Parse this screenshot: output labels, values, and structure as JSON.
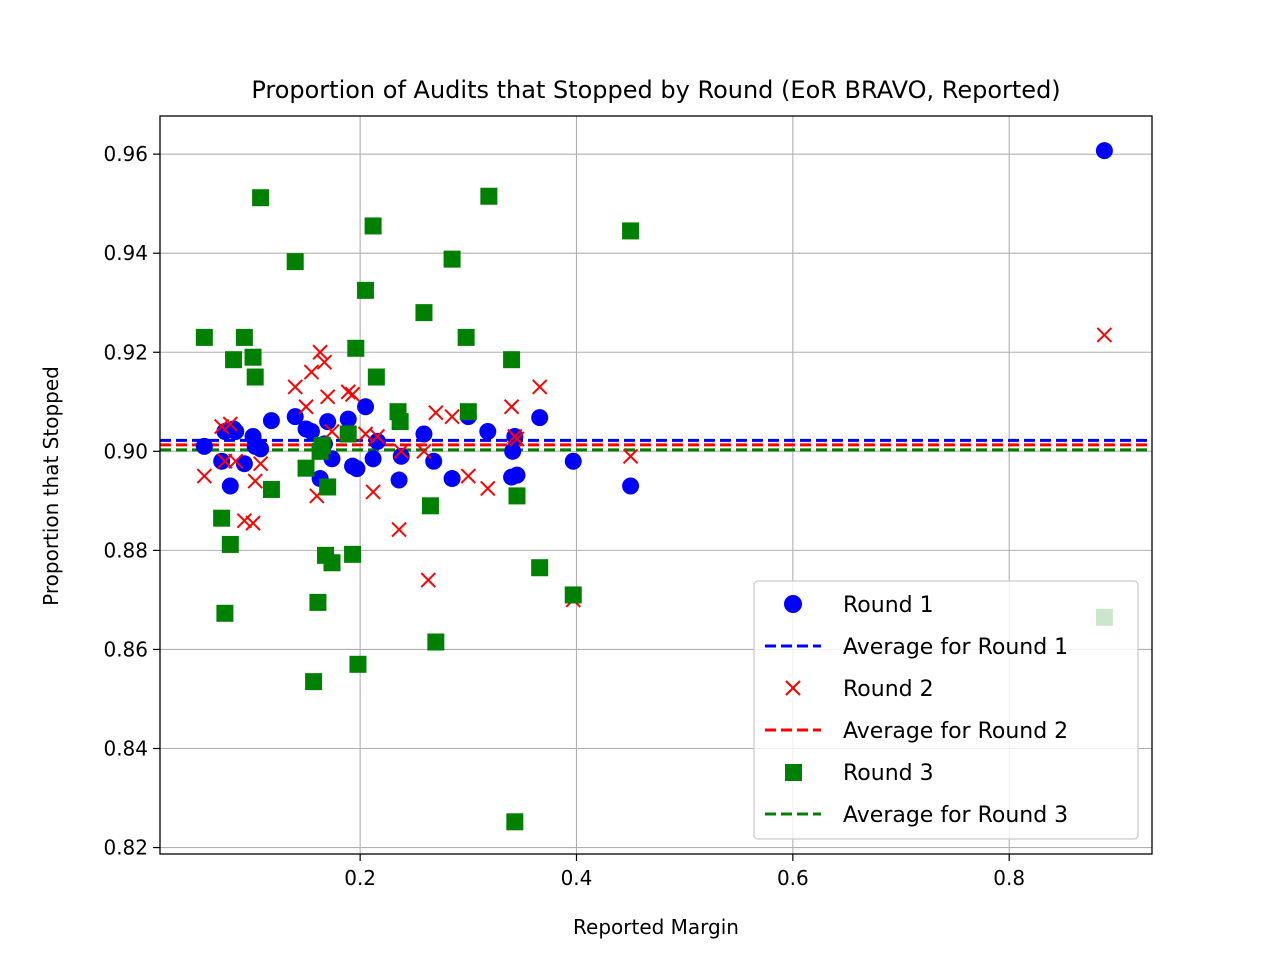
{
  "chart_data": {
    "type": "scatter",
    "title": "Proportion of Audits that Stopped by Round (EoR BRAVO, Reported)",
    "xlabel": "Reported Margin",
    "ylabel": "Proportion that Stopped",
    "xlim": [
      0.015,
      0.932
    ],
    "ylim": [
      0.8187,
      0.9677
    ],
    "xticks": [
      0.2,
      0.4,
      0.6,
      0.8
    ],
    "xtick_labels": [
      "0.2",
      "0.4",
      "0.6",
      "0.8"
    ],
    "yticks": [
      0.82,
      0.84,
      0.86,
      0.88,
      0.9,
      0.92,
      0.94,
      0.96
    ],
    "ytick_labels": [
      "0.82",
      "0.84",
      "0.86",
      "0.88",
      "0.90",
      "0.92",
      "0.94",
      "0.96"
    ],
    "grid": true,
    "legend_position": "lower-right",
    "series": [
      {
        "name": "Round 1",
        "color": "#0000ff",
        "marker": "circle",
        "x": [
          0.056,
          0.072,
          0.075,
          0.08,
          0.083,
          0.085,
          0.093,
          0.101,
          0.103,
          0.108,
          0.118,
          0.14,
          0.15,
          0.155,
          0.163,
          0.167,
          0.17,
          0.174,
          0.189,
          0.193,
          0.197,
          0.205,
          0.212,
          0.216,
          0.236,
          0.238,
          0.259,
          0.268,
          0.285,
          0.3,
          0.318,
          0.34,
          0.341,
          0.343,
          0.345,
          0.366,
          0.397,
          0.45,
          0.888
        ],
        "y": [
          0.901,
          0.898,
          0.904,
          0.893,
          0.9045,
          0.904,
          0.8975,
          0.903,
          0.901,
          0.9005,
          0.9062,
          0.907,
          0.9045,
          0.904,
          0.8945,
          0.9015,
          0.906,
          0.8985,
          0.9065,
          0.897,
          0.8965,
          0.909,
          0.8985,
          0.902,
          0.8942,
          0.899,
          0.9035,
          0.898,
          0.8945,
          0.907,
          0.904,
          0.8948,
          0.9,
          0.903,
          0.8952,
          0.9068,
          0.898,
          0.893,
          0.9607
        ]
      },
      {
        "name": "Average for Round 1",
        "color": "#0000ff",
        "style": "dashed",
        "y": 0.9022
      },
      {
        "name": "Round 2",
        "color": "#ff0000",
        "marker": "x",
        "x": [
          0.056,
          0.072,
          0.075,
          0.08,
          0.085,
          0.093,
          0.101,
          0.103,
          0.108,
          0.14,
          0.15,
          0.155,
          0.16,
          0.163,
          0.167,
          0.17,
          0.174,
          0.189,
          0.193,
          0.205,
          0.212,
          0.216,
          0.236,
          0.238,
          0.259,
          0.263,
          0.27,
          0.285,
          0.3,
          0.318,
          0.34,
          0.343,
          0.345,
          0.366,
          0.397,
          0.45,
          0.888
        ],
        "y": [
          0.895,
          0.905,
          0.898,
          0.9055,
          0.898,
          0.886,
          0.8855,
          0.894,
          0.8975,
          0.913,
          0.909,
          0.916,
          0.891,
          0.92,
          0.918,
          0.911,
          0.904,
          0.912,
          0.9115,
          0.9035,
          0.8918,
          0.903,
          0.8842,
          0.9,
          0.9,
          0.874,
          0.9078,
          0.907,
          0.895,
          0.8925,
          0.909,
          0.903,
          0.9025,
          0.913,
          0.87,
          0.899,
          0.9235
        ]
      },
      {
        "name": "Average for Round 2",
        "color": "#ff0000",
        "style": "dashed",
        "y": 0.9013
      },
      {
        "name": "Round 3",
        "color": "#008000",
        "marker": "square",
        "x": [
          0.056,
          0.072,
          0.075,
          0.08,
          0.083,
          0.093,
          0.101,
          0.103,
          0.108,
          0.118,
          0.14,
          0.15,
          0.157,
          0.161,
          0.163,
          0.165,
          0.168,
          0.17,
          0.174,
          0.189,
          0.193,
          0.196,
          0.198,
          0.205,
          0.212,
          0.215,
          0.235,
          0.237,
          0.259,
          0.265,
          0.27,
          0.285,
          0.298,
          0.3,
          0.319,
          0.34,
          0.343,
          0.345,
          0.366,
          0.397,
          0.45,
          0.888
        ],
        "y": [
          0.923,
          0.8865,
          0.8673,
          0.8812,
          0.9185,
          0.923,
          0.919,
          0.915,
          0.9512,
          0.8923,
          0.9383,
          0.8966,
          0.8535,
          0.8695,
          0.9,
          0.9012,
          0.879,
          0.8928,
          0.8775,
          0.9035,
          0.8792,
          0.9208,
          0.857,
          0.9325,
          0.9455,
          0.915,
          0.908,
          0.906,
          0.928,
          0.889,
          0.8615,
          0.9388,
          0.923,
          0.908,
          0.9515,
          0.9185,
          0.8252,
          0.891,
          0.8765,
          0.871,
          0.9445,
          0.8665
        ]
      },
      {
        "name": "Average for Round 3",
        "color": "#008000",
        "style": "dashed",
        "y": 0.9003
      }
    ]
  }
}
